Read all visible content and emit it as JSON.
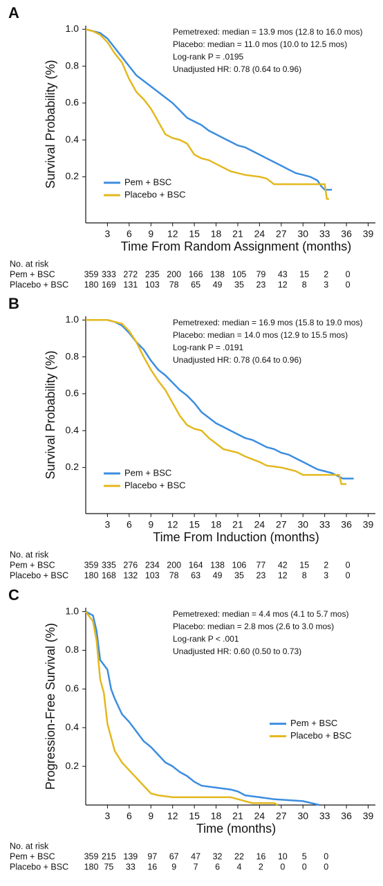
{
  "chart_data": [
    {
      "type": "line",
      "label": "A",
      "annotations": [
        "Pemetrexed: median = 13.9 mos (12.8 to 16.0 mos)",
        "Placebo: median = 11.0 mos (10.0 to 12.5 mos)",
        "Log-rank P = .0195",
        "Unadjusted HR: 0.78 (0.64 to 0.96)"
      ],
      "ylabel": "Survival Probability (%)",
      "xlabel": "Time From Random Assignment (months)",
      "xlim": [
        0,
        40
      ],
      "xticks": [
        3,
        6,
        9,
        12,
        15,
        18,
        21,
        24,
        27,
        30,
        33,
        36,
        39
      ],
      "ylim": [
        -0.05,
        1.02
      ],
      "yticks": [
        0.2,
        0.4,
        0.6,
        0.8,
        {
          "value": 1,
          "label": "1.0"
        }
      ],
      "legend": "lower left",
      "series": [
        {
          "name": "Pem + BSC",
          "color": "#3b8de0",
          "x": [
            0,
            1,
            2,
            3,
            4,
            5,
            6,
            7,
            8,
            9,
            10,
            11,
            12,
            13,
            14,
            15,
            16,
            17,
            18,
            19,
            20,
            21,
            22,
            23,
            24,
            25,
            26,
            27,
            28,
            29,
            30,
            31,
            32,
            32.5,
            33,
            34
          ],
          "values": [
            1,
            0.99,
            0.98,
            0.95,
            0.9,
            0.85,
            0.8,
            0.75,
            0.72,
            0.69,
            0.66,
            0.63,
            0.6,
            0.56,
            0.52,
            0.5,
            0.48,
            0.45,
            0.43,
            0.41,
            0.39,
            0.37,
            0.36,
            0.34,
            0.32,
            0.3,
            0.28,
            0.26,
            0.24,
            0.22,
            0.21,
            0.2,
            0.18,
            0.15,
            0.13,
            0.13
          ]
        },
        {
          "name": "Placebo + BSC",
          "color": "#e3b81e",
          "x": [
            0,
            1,
            2,
            3,
            4,
            5,
            6,
            7,
            8,
            9,
            10,
            11,
            12,
            13,
            14,
            15,
            16,
            17,
            18,
            19,
            20,
            21,
            22,
            24,
            25,
            26,
            31,
            33,
            33.3,
            33.6
          ],
          "values": [
            1,
            0.99,
            0.97,
            0.93,
            0.87,
            0.82,
            0.73,
            0.66,
            0.62,
            0.57,
            0.5,
            0.43,
            0.41,
            0.4,
            0.38,
            0.32,
            0.3,
            0.29,
            0.27,
            0.25,
            0.23,
            0.22,
            0.21,
            0.2,
            0.19,
            0.16,
            0.16,
            0.16,
            0.08,
            0.08
          ]
        }
      ],
      "risk_table": {
        "title": "No. at risk",
        "rows": [
          {
            "name": "Pem + BSC",
            "values": [
              359,
              333,
              272,
              235,
              200,
              166,
              138,
              105,
              79,
              43,
              15,
              2,
              0
            ]
          },
          {
            "name": "Placebo + BSC",
            "values": [
              180,
              169,
              131,
              103,
              78,
              65,
              49,
              35,
              23,
              12,
              8,
              3,
              0
            ]
          }
        ]
      }
    },
    {
      "type": "line",
      "label": "B",
      "annotations": [
        "Pemetrexed: median = 16.9 mos (15.8 to 19.0 mos)",
        "Placebo: median = 14.0 mos (12.9 to 15.5 mos)",
        "Log-rank P = .0191",
        "Unadjusted HR: 0.78 (0.64 to 0.96)"
      ],
      "ylabel": "Survival Probability (%)",
      "xlabel": "Time From Induction (months)",
      "xlim": [
        0,
        40
      ],
      "xticks": [
        3,
        6,
        9,
        12,
        15,
        18,
        21,
        24,
        27,
        30,
        33,
        36,
        39
      ],
      "ylim": [
        -0.05,
        1.02
      ],
      "yticks": [
        0.2,
        0.4,
        0.6,
        0.8,
        {
          "value": 1,
          "label": "1.0"
        }
      ],
      "legend": "lower left",
      "series": [
        {
          "name": "Pem + BSC",
          "color": "#3b8de0",
          "x": [
            0,
            3,
            4,
            5,
            6,
            7,
            8,
            9,
            10,
            11,
            12,
            13,
            14,
            15,
            16,
            17,
            18,
            19,
            20,
            21,
            22,
            23,
            24,
            25,
            26,
            27,
            28,
            29,
            30,
            31,
            32,
            34,
            35,
            35.5,
            37
          ],
          "values": [
            1,
            1,
            0.99,
            0.97,
            0.93,
            0.88,
            0.84,
            0.78,
            0.73,
            0.7,
            0.66,
            0.62,
            0.59,
            0.55,
            0.5,
            0.47,
            0.44,
            0.42,
            0.4,
            0.38,
            0.36,
            0.35,
            0.33,
            0.31,
            0.3,
            0.28,
            0.27,
            0.25,
            0.23,
            0.21,
            0.19,
            0.17,
            0.15,
            0.14,
            0.14
          ]
        },
        {
          "name": "Placebo + BSC",
          "color": "#e3b81e",
          "x": [
            0,
            3,
            5,
            6,
            7,
            8,
            9,
            10,
            11,
            12,
            13,
            14,
            15,
            16,
            17,
            18,
            19,
            21,
            22,
            24,
            25,
            27,
            29,
            30,
            35,
            35.3,
            36
          ],
          "values": [
            1,
            1,
            0.98,
            0.94,
            0.88,
            0.8,
            0.73,
            0.67,
            0.62,
            0.55,
            0.48,
            0.43,
            0.41,
            0.4,
            0.36,
            0.33,
            0.3,
            0.28,
            0.26,
            0.23,
            0.21,
            0.2,
            0.18,
            0.16,
            0.16,
            0.11,
            0.11
          ]
        }
      ],
      "risk_table": {
        "title": "No. at risk",
        "rows": [
          {
            "name": "Pem + BSC",
            "values": [
              359,
              335,
              276,
              234,
              200,
              164,
              138,
              106,
              77,
              42,
              15,
              2,
              0
            ]
          },
          {
            "name": "Placebo + BSC",
            "values": [
              180,
              168,
              132,
              103,
              78,
              63,
              49,
              35,
              23,
              12,
              8,
              3,
              0
            ]
          }
        ]
      }
    },
    {
      "type": "line",
      "label": "C",
      "annotations": [
        "Pemetrexed: median = 4.4 mos (4.1 to 5.7 mos)",
        "Placebo: median = 2.8 mos (2.6 to 3.0 mos)",
        "Log-rank P < .001",
        "Unadjusted HR: 0.60 (0.50 to 0.73)"
      ],
      "ylabel": "Progression-Free Survival (%)",
      "xlabel": "Time (months)",
      "xlim": [
        0,
        40
      ],
      "xticks": [
        3,
        6,
        9,
        12,
        15,
        18,
        21,
        24,
        27,
        30,
        33,
        36,
        39
      ],
      "ylim": [
        0,
        1.02
      ],
      "yticks": [
        0.2,
        0.4,
        0.6,
        0.8,
        {
          "value": 1,
          "label": "1.0"
        }
      ],
      "legend": "center right",
      "series": [
        {
          "name": "Pem + BSC",
          "color": "#3b8de0",
          "x": [
            0,
            1,
            1.5,
            2,
            3,
            3.5,
            4,
            5,
            6,
            7,
            8,
            9,
            10,
            11,
            12,
            13,
            14,
            15,
            16,
            18,
            20,
            21,
            22,
            24,
            26,
            30,
            32.3
          ],
          "values": [
            1,
            0.98,
            0.9,
            0.75,
            0.7,
            0.6,
            0.55,
            0.47,
            0.43,
            0.38,
            0.33,
            0.3,
            0.26,
            0.22,
            0.2,
            0.17,
            0.15,
            0.12,
            0.1,
            0.09,
            0.08,
            0.07,
            0.05,
            0.04,
            0.03,
            0.02,
            0
          ]
        },
        {
          "name": "Placebo + BSC",
          "color": "#e3b81e",
          "x": [
            0,
            1,
            1.5,
            2,
            2.5,
            3,
            3.5,
            4,
            5,
            6,
            7,
            8,
            9,
            10,
            12,
            20,
            21,
            23,
            26,
            26.5
          ],
          "values": [
            1,
            0.95,
            0.85,
            0.65,
            0.58,
            0.42,
            0.35,
            0.28,
            0.22,
            0.18,
            0.14,
            0.1,
            0.06,
            0.05,
            0.04,
            0.04,
            0.03,
            0.01,
            0.01,
            0
          ]
        }
      ],
      "risk_table": {
        "title": "No. at risk",
        "rows": [
          {
            "name": "Pem + BSC",
            "values": [
              359,
              215,
              139,
              97,
              67,
              47,
              32,
              22,
              16,
              10,
              5,
              0
            ]
          },
          {
            "name": "Placebo + BSC",
            "values": [
              180,
              75,
              33,
              16,
              9,
              7,
              6,
              4,
              2,
              0,
              0,
              0
            ]
          }
        ]
      }
    }
  ]
}
